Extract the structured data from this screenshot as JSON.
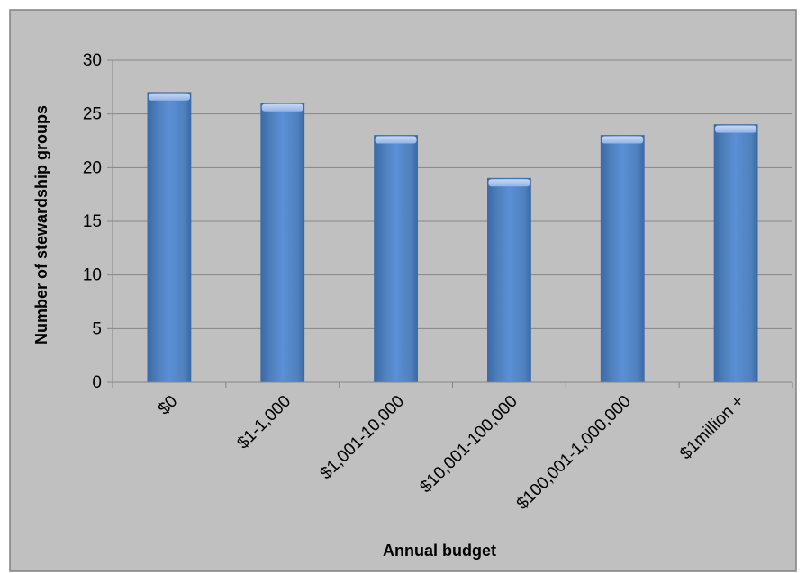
{
  "colors": {
    "chart_background": "#c0c0c0",
    "plot_background": "#c0c0c0",
    "frame_border": "#808080",
    "gridline": "#868686",
    "bar_fill": "#4f81bd",
    "bar_highlight": "#95b3e8",
    "bar_edge": "#3a6aa8"
  },
  "chart_data": {
    "type": "bar",
    "title": "",
    "xlabel": "Annual budget",
    "ylabel": "Number of stewardship groups",
    "categories": [
      "$0",
      "$1-1,000",
      "$1,001-10,000",
      "$10,001-100,000",
      "$100,001-1,000,000",
      "$1million +"
    ],
    "values": [
      27,
      26,
      23,
      19,
      23,
      24
    ],
    "ylim": [
      0,
      30
    ],
    "yticks": [
      0,
      5,
      10,
      15,
      20,
      25,
      30
    ],
    "grid": true,
    "legend": "none"
  }
}
